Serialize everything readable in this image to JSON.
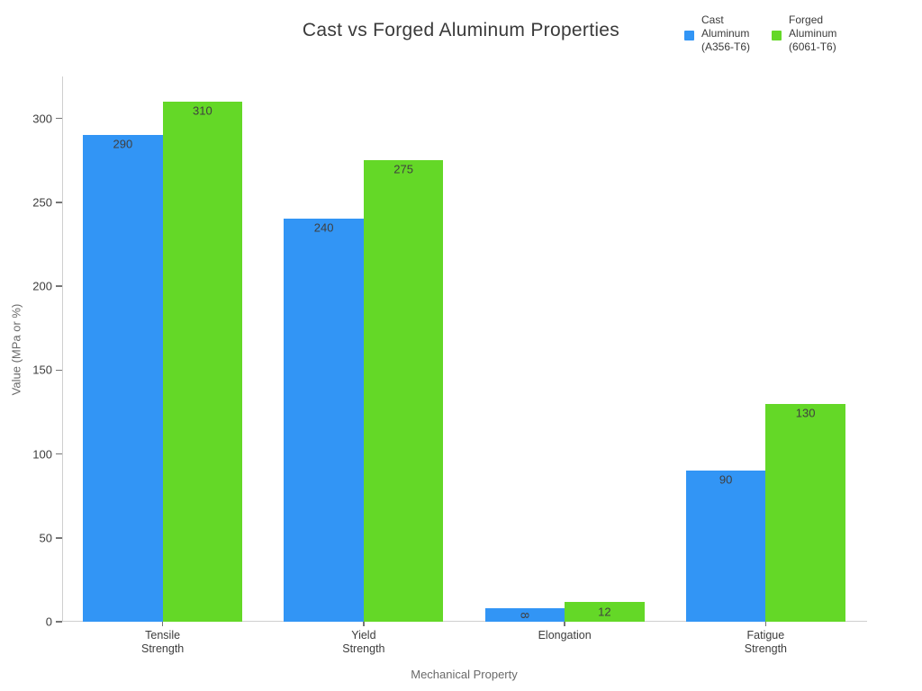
{
  "title": "Cast vs Forged Aluminum Properties",
  "legend": {
    "position": "top-right",
    "items": [
      {
        "name": "Cast Aluminum (A356-T6)",
        "label_lines": [
          "Cast",
          "Aluminum",
          "(A356-T6)"
        ],
        "color": "#3295f5"
      },
      {
        "name": "Forged Aluminum (6061-T6)",
        "label_lines": [
          "Forged",
          "Aluminum",
          "(6061-T6)"
        ],
        "color": "#64d827"
      }
    ]
  },
  "chart_data": {
    "type": "bar",
    "title": "Cast vs Forged Aluminum Properties",
    "xlabel": "Mechanical Property",
    "ylabel": "Value (MPa or %)",
    "categories": [
      "Tensile Strength",
      "Yield Strength",
      "Elongation",
      "Fatigue Strength"
    ],
    "category_tick_lines": [
      [
        "Tensile",
        "Strength"
      ],
      [
        "Yield",
        "Strength"
      ],
      [
        "Elongation"
      ],
      [
        "Fatigue",
        "Strength"
      ]
    ],
    "series": [
      {
        "name": "Cast Aluminum (A356-T6)",
        "color": "#3295f5",
        "values": [
          290,
          240,
          8,
          90
        ]
      },
      {
        "name": "Forged Aluminum (6061-T6)",
        "color": "#64d827",
        "values": [
          310,
          275,
          12,
          130
        ]
      }
    ],
    "value_labels": true,
    "yticks": [
      0,
      50,
      100,
      150,
      200,
      250,
      300
    ],
    "ylim": [
      0,
      325
    ],
    "grid": false,
    "legend_position": "top-right",
    "background": "#ffffff"
  },
  "colors": {
    "cast_blue": "#3295f5",
    "forged_green": "#64d827",
    "title_text": "#3a3a3a",
    "tick_text": "#3d3d3d",
    "axis_label_text": "#6a6a6a",
    "spine": "#cfcfcf",
    "tick_mark": "#757575",
    "bar_value_label_text": "#3f3f3f"
  }
}
